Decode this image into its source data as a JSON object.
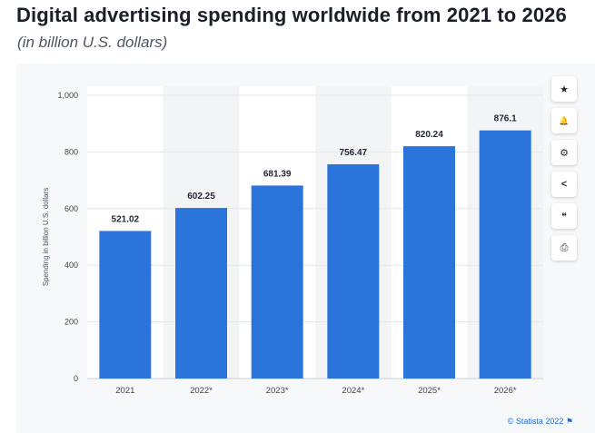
{
  "header": {
    "title": "Digital advertising spending worldwide from 2021 to 2026",
    "subtitle": "(in billion U.S. dollars)"
  },
  "chart_data": {
    "type": "bar",
    "categories": [
      "2021",
      "2022*",
      "2023*",
      "2024*",
      "2025*",
      "2026*"
    ],
    "values": [
      521.02,
      602.25,
      681.39,
      756.47,
      820.24,
      876.1
    ],
    "value_labels": [
      "521.02",
      "602.25",
      "681.39",
      "756.47",
      "820.24",
      "876.1"
    ],
    "title": "",
    "xlabel": "",
    "ylabel": "Spending in billion U.S. dollars",
    "ylim": [
      0,
      1000
    ],
    "y_ticks": [
      0,
      200,
      400,
      600,
      800,
      1000
    ],
    "y_tick_labels": [
      "0",
      "200",
      "400",
      "600",
      "800",
      "1,000"
    ],
    "grid": true,
    "legend": "none",
    "bar_color": "#2a74dc",
    "highlight_band_color": "#f3f4f6"
  },
  "toolbar": {
    "buttons": [
      {
        "name": "favorite-button",
        "icon": "star-icon",
        "glyph": "★"
      },
      {
        "name": "notification-button",
        "icon": "bell-icon",
        "glyph": "🔔"
      },
      {
        "name": "settings-button",
        "icon": "gear-icon",
        "glyph": "⚙"
      },
      {
        "name": "share-button",
        "icon": "share-icon",
        "glyph": "<"
      },
      {
        "name": "cite-button",
        "icon": "quote-icon",
        "glyph": "❝"
      },
      {
        "name": "print-button",
        "icon": "print-icon",
        "glyph": "⎙"
      }
    ]
  },
  "footer": {
    "credit": "© Statista 2022",
    "flag_glyph": "⚑"
  }
}
